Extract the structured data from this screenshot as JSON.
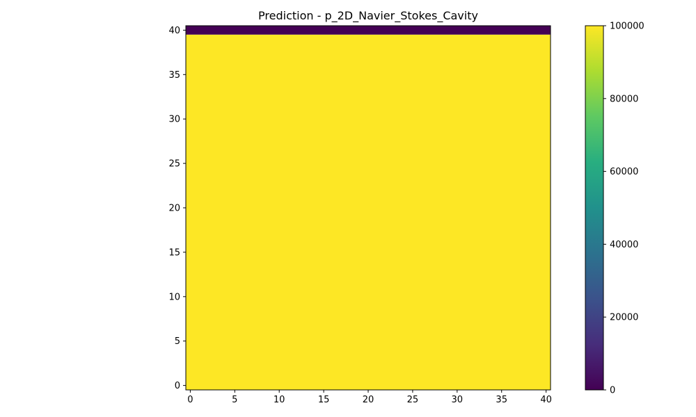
{
  "chart_data": {
    "type": "heatmap",
    "title": "Prediction - p_2D_Navier_Stokes_Cavity",
    "xlabel": "",
    "ylabel": "",
    "xlim": [
      -0.5,
      40.5
    ],
    "ylim": [
      -0.5,
      40.5
    ],
    "x_ticks": [
      0,
      5,
      10,
      15,
      20,
      25,
      30,
      35,
      40
    ],
    "y_ticks": [
      0,
      5,
      10,
      15,
      20,
      25,
      30,
      35,
      40
    ],
    "grid_size": [
      41,
      41
    ],
    "regions": [
      {
        "rows": [
          0,
          39
        ],
        "cols": [
          0,
          40
        ],
        "value": 100000
      },
      {
        "rows": [
          40,
          40
        ],
        "cols": [
          0,
          40
        ],
        "value": 0
      }
    ],
    "colormap": "viridis",
    "colorbar": {
      "min": 0,
      "max": 100000,
      "ticks": [
        0,
        20000,
        40000,
        60000,
        80000,
        100000
      ],
      "tick_labels": [
        "0",
        "20000",
        "40000",
        "60000",
        "80000",
        "100000"
      ]
    },
    "grid": false,
    "legend": "none"
  }
}
